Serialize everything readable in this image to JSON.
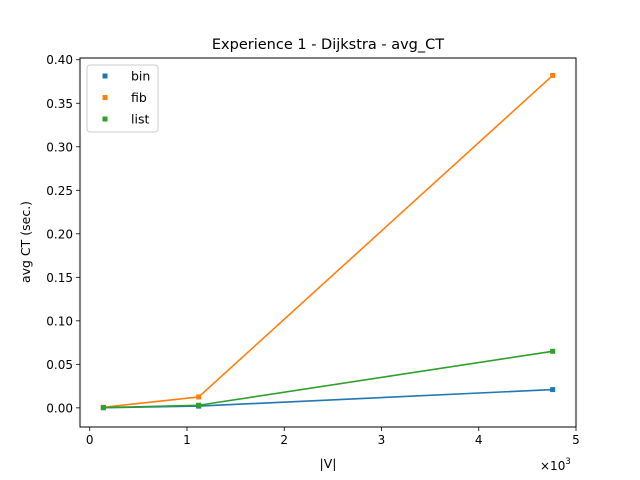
{
  "chart_data": {
    "type": "line",
    "title": "Experience 1 - Dijkstra - avg_CT",
    "xlabel": "|V|",
    "ylabel": "avg CT (sec.)",
    "x_multiplier_label": "×10",
    "x_multiplier_exponent": "3",
    "x_multiplier_value": 1000,
    "xlim": [
      -0.1,
      5.0
    ],
    "ylim": [
      -0.022,
      0.402
    ],
    "x_ticks": [
      {
        "value": 0,
        "label": "0"
      },
      {
        "value": 1,
        "label": "1"
      },
      {
        "value": 2,
        "label": "2"
      },
      {
        "value": 3,
        "label": "3"
      },
      {
        "value": 4,
        "label": "4"
      },
      {
        "value": 5,
        "label": "5"
      }
    ],
    "y_ticks": [
      {
        "value": 0.0,
        "label": "0.00"
      },
      {
        "value": 0.05,
        "label": "0.05"
      },
      {
        "value": 0.1,
        "label": "0.10"
      },
      {
        "value": 0.15,
        "label": "0.15"
      },
      {
        "value": 0.2,
        "label": "0.20"
      },
      {
        "value": 0.25,
        "label": "0.25"
      },
      {
        "value": 0.3,
        "label": "0.30"
      },
      {
        "value": 0.35,
        "label": "0.35"
      },
      {
        "value": 0.4,
        "label": "0.40"
      }
    ],
    "x": [
      140,
      1120,
      4760
    ],
    "series": [
      {
        "name": "bin",
        "color": "#1f77b4",
        "values": [
          0.0002,
          0.002,
          0.021
        ]
      },
      {
        "name": "fib",
        "color": "#ff7f0e",
        "values": [
          0.0007,
          0.0125,
          0.382
        ]
      },
      {
        "name": "list",
        "color": "#2ca02c",
        "values": [
          0.0003,
          0.003,
          0.065
        ]
      }
    ],
    "grid": false,
    "legend_position": "top-left",
    "marker": "square"
  }
}
